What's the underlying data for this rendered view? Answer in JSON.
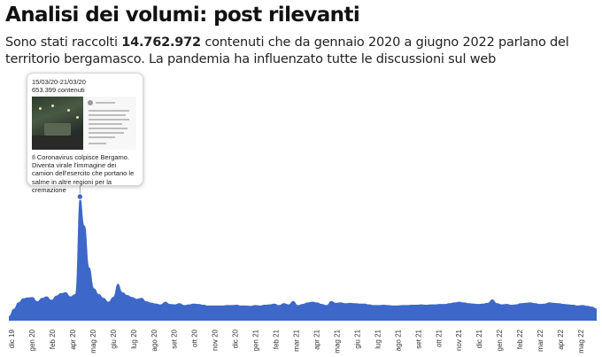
{
  "header": {
    "title": "Analisi dei volumi: post rilevanti",
    "subtitle_before": "Sono stati raccolti ",
    "subtitle_bold": "14.762.972",
    "subtitle_after": " contenuti che da gennaio 2020 a giugno 2022 parlano del territorio bergamasco. La pandemia ha influenzato tutte le discussioni sul web"
  },
  "tooltip": {
    "date_range": "15/03/20-21/03/20",
    "count": "653.399 contenuti",
    "text": "Il Coronavirus colpisce Bergamo. Diventa virale l'immagine dei camion dell'esercito che portano le salme in altre regioni per la cremazione"
  },
  "chart_data": {
    "type": "area",
    "title": "",
    "xlabel": "",
    "ylabel": "",
    "color": "#3d68c9",
    "marker_color": "#3d68c9",
    "grid": false,
    "x_tick_labels": [
      "dic 19",
      "gen 20",
      "feb 20",
      "apr 20",
      "mag 20",
      "giu 20",
      "lug 20",
      "ago 20",
      "set 20",
      "ott 20",
      "nov 20",
      "dic 20",
      "gen 21",
      "feb 21",
      "mar 21",
      "apr 21",
      "mag 21",
      "giu 21",
      "lug 21",
      "ago 21",
      "set 21",
      "ott 21",
      "nov 21",
      "dic 21",
      "gen 22",
      "feb 22",
      "mar 22",
      "apr 22",
      "mag 22"
    ],
    "highlight": {
      "week": "15/03/20-21/03/20",
      "value": 653399
    },
    "weekly_values": [
      24000,
      62000,
      96000,
      118000,
      122000,
      124000,
      102000,
      120000,
      128000,
      110000,
      132000,
      145000,
      150000,
      128000,
      140000,
      653399,
      500000,
      280000,
      170000,
      140000,
      120000,
      100000,
      125000,
      195000,
      150000,
      135000,
      125000,
      115000,
      120000,
      102000,
      95000,
      90000,
      86000,
      100000,
      88000,
      86000,
      92000,
      82000,
      86000,
      90000,
      88000,
      84000,
      80000,
      80000,
      80000,
      80000,
      82000,
      82000,
      84000,
      80000,
      80000,
      78000,
      82000,
      80000,
      84000,
      86000,
      90000,
      82000,
      92000,
      86000,
      104000,
      82000,
      88000,
      96000,
      100000,
      96000,
      88000,
      82000,
      104000,
      94000,
      96000,
      92000,
      94000,
      92000,
      90000,
      90000,
      86000,
      82000,
      82000,
      84000,
      82000,
      80000,
      80000,
      82000,
      82000,
      84000,
      84000,
      86000,
      84000,
      86000,
      86000,
      88000,
      88000,
      92000,
      96000,
      100000,
      96000,
      92000,
      90000,
      88000,
      90000,
      94000,
      112000,
      92000,
      86000,
      88000,
      84000,
      86000,
      92000,
      94000,
      96000,
      92000,
      88000,
      90000,
      96000,
      94000,
      92000,
      88000,
      86000,
      84000,
      80000,
      82000,
      78000,
      74000,
      64000
    ]
  }
}
